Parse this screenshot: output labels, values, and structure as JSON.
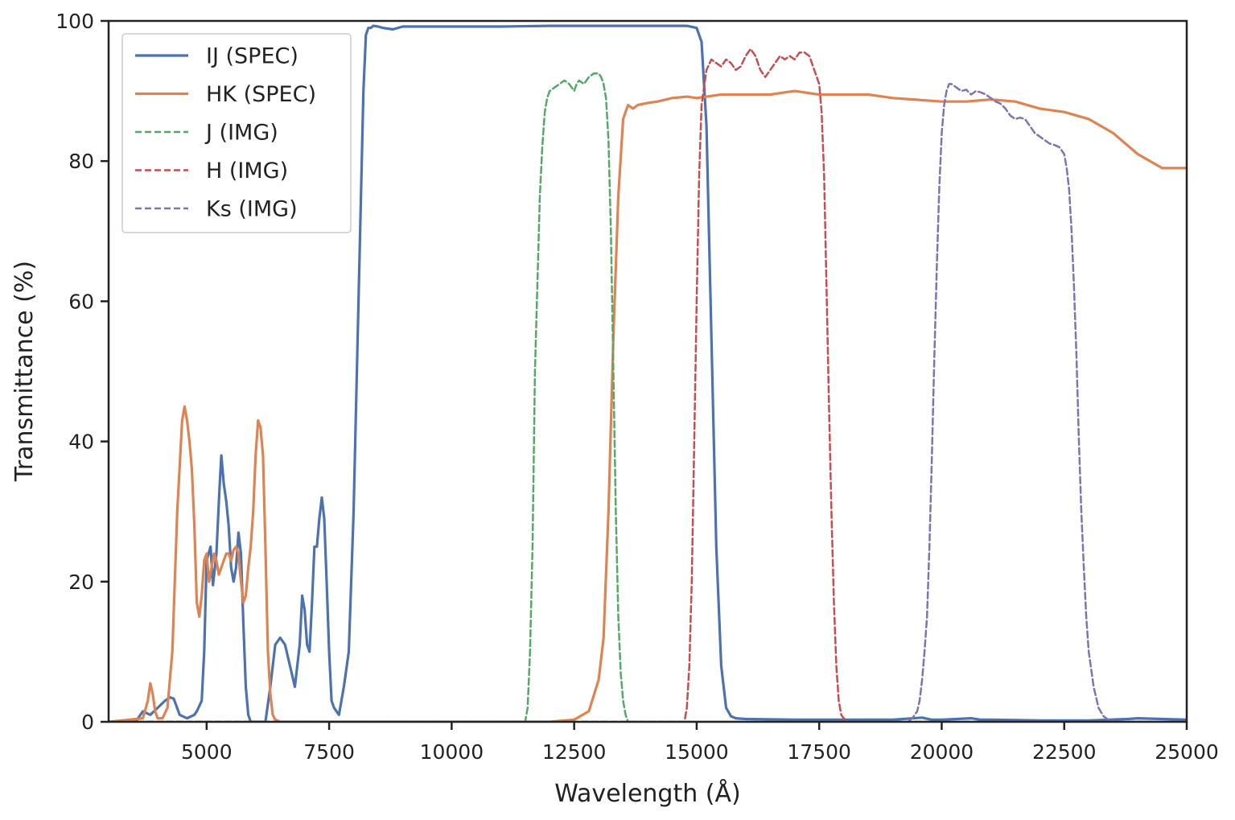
{
  "chart_data": {
    "type": "line",
    "xlabel": "Wavelength (Å)",
    "ylabel": "Transmittance (%)",
    "xlim": [
      3000,
      25000
    ],
    "ylim": [
      0,
      100
    ],
    "xticks": [
      5000,
      7500,
      10000,
      12500,
      15000,
      17500,
      20000,
      22500,
      25000
    ],
    "xtick_labels": [
      "5000",
      "7500",
      "10000",
      "12500",
      "15000",
      "17500",
      "20000",
      "22500",
      "25000"
    ],
    "yticks": [
      0,
      20,
      40,
      60,
      80,
      100
    ],
    "ytick_labels": [
      "0",
      "20",
      "40",
      "60",
      "80",
      "100"
    ],
    "grid": false,
    "legend_position": "top-left",
    "series": [
      {
        "name": "IJ (SPEC)",
        "color": "#4c72b0",
        "style": "solid",
        "x": [
          3000,
          3550,
          3700,
          3850,
          4000,
          4150,
          4250,
          4330,
          4450,
          4600,
          4750,
          4800,
          4900,
          4950,
          5000,
          5080,
          5130,
          5200,
          5260,
          5300,
          5350,
          5400,
          5450,
          5500,
          5550,
          5600,
          5650,
          5700,
          5750,
          5800,
          5850,
          5900,
          6000,
          6200,
          6300,
          6400,
          6500,
          6600,
          6700,
          6800,
          6900,
          6950,
          7000,
          7050,
          7100,
          7150,
          7200,
          7250,
          7300,
          7350,
          7400,
          7450,
          7500,
          7550,
          7600,
          7650,
          7700,
          7750,
          7800,
          7900,
          8000,
          8100,
          8200,
          8250,
          8300,
          8350,
          8400,
          8500,
          8600,
          8800,
          9000,
          10000,
          11000,
          12000,
          13000,
          14000,
          14800,
          15000,
          15100,
          15200,
          15300,
          15400,
          15500,
          15600,
          15700,
          15800,
          16000,
          17000,
          18000,
          19000,
          19600,
          19800,
          20000,
          20600,
          20800,
          21000,
          22000,
          23000,
          23800,
          24000,
          25000
        ],
        "y": [
          0,
          0,
          1.5,
          1,
          2,
          3,
          3.5,
          3.3,
          1,
          0.5,
          1,
          1.5,
          3,
          10,
          23,
          25,
          19.5,
          24,
          33,
          38,
          34,
          31.5,
          28,
          22,
          20,
          22,
          27,
          24,
          14,
          5,
          1,
          0,
          0,
          0,
          5,
          11,
          12,
          11,
          8,
          5,
          11,
          18,
          16,
          11,
          10,
          17,
          25,
          25,
          29,
          32,
          29,
          20,
          10,
          3,
          2,
          1.5,
          1,
          3,
          5,
          10,
          30,
          60,
          90,
          98,
          99,
          99,
          99.3,
          99.2,
          99,
          98.8,
          99.2,
          99.2,
          99.2,
          99.3,
          99.3,
          99.3,
          99.3,
          99,
          97,
          85,
          55,
          25,
          8,
          2,
          0.8,
          0.5,
          0.4,
          0.3,
          0.3,
          0.3,
          0.6,
          0.3,
          0.3,
          0.5,
          0.3,
          0.3,
          0.2,
          0.2,
          0.4,
          0.5,
          0.3
        ]
      },
      {
        "name": "HK (SPEC)",
        "color": "#dd8452",
        "style": "solid",
        "x": [
          3000,
          3700,
          3800,
          3850,
          3900,
          3950,
          4000,
          4100,
          4200,
          4300,
          4400,
          4500,
          4550,
          4600,
          4650,
          4700,
          4750,
          4800,
          4850,
          4900,
          4950,
          5000,
          5050,
          5100,
          5150,
          5200,
          5250,
          5300,
          5350,
          5400,
          5450,
          5500,
          5550,
          5600,
          5650,
          5700,
          5750,
          5800,
          5850,
          5900,
          5950,
          6000,
          6050,
          6100,
          6150,
          6200,
          6250,
          6300,
          6350,
          6400,
          6500,
          6600,
          6700,
          7000,
          8000,
          10000,
          12000,
          12500,
          12800,
          13000,
          13100,
          13200,
          13300,
          13400,
          13500,
          13600,
          13700,
          13800,
          14000,
          14200,
          14500,
          14800,
          15000,
          15500,
          16000,
          16500,
          17000,
          17500,
          18000,
          18500,
          19000,
          20000,
          20500,
          21000,
          21500,
          22000,
          22500,
          23000,
          23500,
          24000,
          24500,
          24800,
          25000
        ],
        "y": [
          0,
          0.5,
          3,
          5.5,
          4,
          1.5,
          0.5,
          0.5,
          2,
          10,
          30,
          43,
          45,
          43,
          40,
          36,
          28,
          17,
          15,
          18,
          23,
          24,
          20,
          22,
          24,
          23,
          21,
          22,
          23,
          24,
          24,
          23,
          24.5,
          25,
          24,
          20,
          17,
          18,
          22,
          25,
          30,
          38,
          43,
          42,
          38,
          25,
          10,
          4,
          1,
          0.3,
          0,
          0,
          0,
          0,
          0,
          0,
          0,
          0.3,
          1.5,
          6,
          12,
          30,
          55,
          75,
          86,
          88,
          87.5,
          88,
          88.3,
          88.5,
          89,
          89.2,
          89,
          89.5,
          89.5,
          89.5,
          90,
          89.5,
          89.5,
          89.5,
          89,
          88.5,
          88.5,
          88.8,
          88.5,
          87.5,
          87,
          86,
          84,
          81,
          79,
          79,
          79
        ]
      },
      {
        "name": "J (IMG)",
        "color": "#55a868",
        "style": "dashed",
        "x": [
          3000,
          11500,
          11550,
          11600,
          11650,
          11700,
          11800,
          11850,
          11900,
          11950,
          12000,
          12100,
          12200,
          12300,
          12400,
          12500,
          12550,
          12600,
          12700,
          12800,
          12900,
          13000,
          13050,
          13100,
          13150,
          13200,
          13250,
          13300,
          13350,
          13400,
          13450,
          13500,
          13550,
          13600,
          25000
        ],
        "y": [
          0,
          0,
          2,
          10,
          25,
          50,
          75,
          82,
          87,
          89,
          90,
          90.5,
          91,
          91.5,
          91,
          90,
          91,
          91.5,
          91,
          92,
          92.5,
          92.5,
          92,
          91,
          89,
          83,
          70,
          50,
          30,
          15,
          7,
          3,
          1,
          0,
          0
        ]
      },
      {
        "name": "H (IMG)",
        "color": "#c44e52",
        "style": "dashed",
        "x": [
          3000,
          14750,
          14800,
          14850,
          14900,
          14950,
          15000,
          15050,
          15100,
          15200,
          15300,
          15400,
          15500,
          15600,
          15700,
          15800,
          15900,
          16000,
          16100,
          16200,
          16300,
          16400,
          16500,
          16600,
          16700,
          16800,
          16900,
          17000,
          17100,
          17200,
          17300,
          17400,
          17500,
          17550,
          17600,
          17650,
          17700,
          17750,
          17800,
          17850,
          17900,
          17950,
          18000,
          18100,
          18200,
          25000
        ],
        "y": [
          0,
          0,
          2,
          8,
          20,
          40,
          60,
          78,
          88,
          93,
          94.5,
          94,
          93.5,
          94.5,
          94,
          93,
          93.5,
          95,
          96,
          95,
          93,
          92,
          93,
          94,
          95,
          94.5,
          95,
          94.5,
          95.5,
          95.5,
          95,
          93,
          91,
          87,
          78,
          62,
          45,
          30,
          17,
          8,
          3,
          1,
          0.5,
          0,
          0,
          0
        ]
      },
      {
        "name": "Ks (IMG)",
        "color": "#8172b3",
        "style": "dashed",
        "x": [
          3000,
          19300,
          19400,
          19500,
          19550,
          19600,
          19650,
          19700,
          19750,
          19800,
          19850,
          19900,
          19950,
          20000,
          20050,
          20100,
          20150,
          20200,
          20300,
          20400,
          20500,
          20600,
          20700,
          20800,
          20900,
          21000,
          21100,
          21200,
          21300,
          21400,
          21500,
          21600,
          21700,
          21800,
          21900,
          22000,
          22100,
          22200,
          22300,
          22400,
          22500,
          22550,
          22600,
          22650,
          22700,
          22750,
          22800,
          22850,
          22900,
          22950,
          23000,
          23100,
          23200,
          23300,
          23400,
          23500,
          23600,
          23700,
          25000
        ],
        "y": [
          0,
          0,
          0.5,
          1.5,
          3,
          6,
          10,
          15,
          25,
          38,
          52,
          65,
          76,
          84,
          88,
          90,
          91,
          91,
          90.5,
          90,
          90.2,
          89.5,
          90,
          89.8,
          89.5,
          89,
          88.5,
          88.2,
          87.5,
          86.5,
          86,
          86.2,
          86,
          85,
          84,
          83.5,
          83,
          82.5,
          82.3,
          82,
          81,
          79,
          76,
          70,
          62,
          52,
          40,
          30,
          22,
          15,
          10,
          5,
          2,
          0.8,
          0.3,
          0.1,
          0,
          0,
          0
        ]
      }
    ]
  }
}
